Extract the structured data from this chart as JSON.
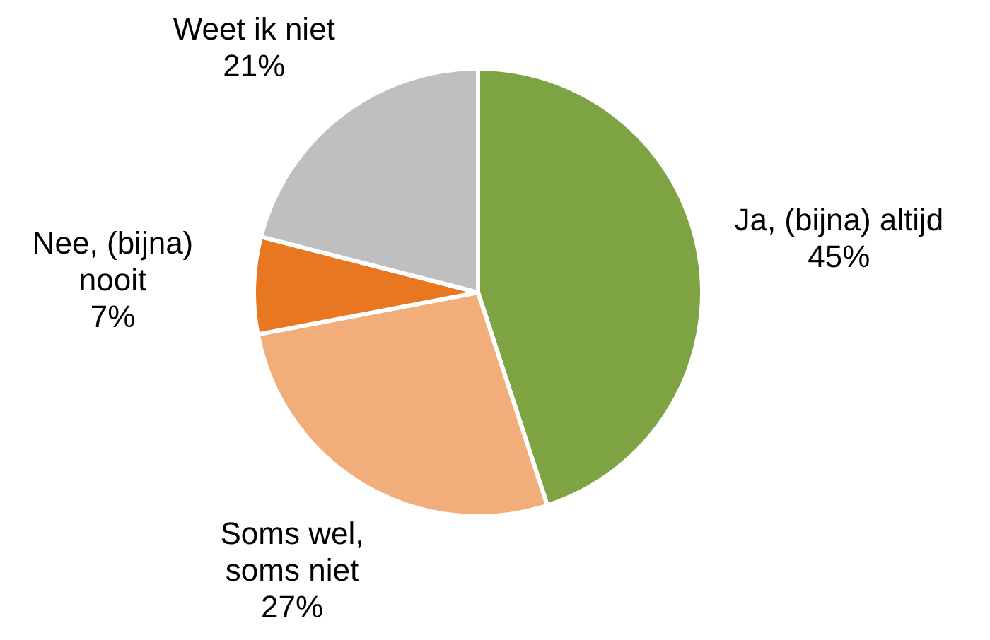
{
  "chart_data": {
    "type": "pie",
    "categories": [
      "Ja, (bijna) altijd",
      "Soms wel, soms niet",
      "Nee, (bijna) nooit",
      "Weet ik niet"
    ],
    "values": [
      45,
      27,
      7,
      21
    ],
    "value_labels": [
      "45%",
      "27%",
      "7%",
      "21%"
    ],
    "colors": [
      "#7ea343",
      "#f2ae7a",
      "#e87722",
      "#bfbfbf"
    ],
    "legend": false
  }
}
